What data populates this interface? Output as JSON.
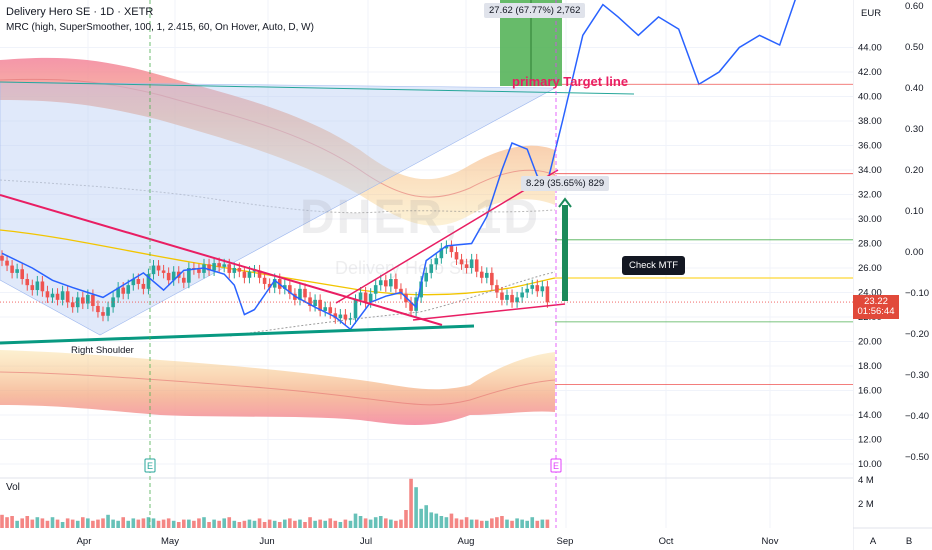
{
  "header": {
    "title": "Delivery Hero SE · 1D · XETR",
    "indicator": "MRC (high, SuperSmoother, 100, 1, 2.415, 60, On Hover, Auto, D, W)"
  },
  "watermark": {
    "symbol": "DHER, 1D",
    "name": "Delivery Hero SE"
  },
  "annotations": {
    "target_box": "27.62 (67.77%) 2,762",
    "move_box": "8.29 (35.65%) 829",
    "target_line": "primary Target line",
    "check_mtf": "Check MTF",
    "right_shoulder": "Right Shoulder",
    "earnings_marker": "E"
  },
  "price_tag": {
    "price": "23.22",
    "countdown": "01:56:44"
  },
  "volume_label": "Vol",
  "axis_labels": {
    "currency": "EUR",
    "scale_a": "A",
    "scale_b": "B"
  },
  "colors": {
    "candle_up": "#26a69a",
    "candle_down": "#ef5350",
    "trendline": "#e91e63",
    "neckline": "#089981",
    "projection": "#2962ff",
    "ma": "#f2c500",
    "target_box": "#4caf50",
    "price_tag": "#e1493a"
  },
  "chart_data": {
    "type": "candlestick",
    "x_ticks": [
      "Apr",
      "May",
      "Jun",
      "Jul",
      "Aug",
      "Sep",
      "Oct",
      "Nov"
    ],
    "price_ticks": [
      10,
      12,
      14,
      16,
      18,
      20,
      22,
      24,
      26,
      28,
      30,
      32,
      34,
      36,
      38,
      40,
      42,
      44
    ],
    "oscillator_ticks": [
      "0.60",
      "0.50",
      "0.40",
      "0.30",
      "0.20",
      "0.10",
      "0.00",
      "−0.10",
      "−0.20",
      "−0.30",
      "−0.40",
      "−0.50"
    ],
    "volume_ticks": [
      "4 M",
      "2 M"
    ],
    "last_price": 23.22,
    "levels": [
      41.0,
      33.7,
      28.3,
      21.6,
      16.5
    ],
    "closes": [
      26.6,
      26.2,
      25.6,
      25.9,
      25.1,
      24.6,
      24.2,
      24.9,
      24.1,
      23.6,
      23.9,
      23.4,
      24.1,
      23.2,
      22.8,
      23.6,
      23.1,
      23.8,
      22.9,
      22.4,
      22.1,
      22.8,
      23.6,
      24.4,
      23.9,
      24.6,
      25.1,
      24.7,
      24.3,
      25.5,
      26.2,
      25.8,
      25.6,
      25.0,
      25.7,
      25.2,
      24.8,
      26.0,
      25.9,
      25.6,
      26.3,
      25.8,
      26.4,
      26.1,
      26.3,
      25.6,
      26.0,
      25.7,
      25.2,
      25.7,
      25.8,
      25.2,
      24.7,
      24.4,
      25.1,
      24.3,
      24.6,
      23.9,
      23.4,
      24.3,
      23.6,
      22.9,
      23.4,
      22.5,
      22.8,
      22.3,
      21.9,
      22.2,
      21.8,
      21.9,
      23.4,
      24.0,
      23.2,
      23.9,
      24.6,
      25.0,
      24.5,
      25.1,
      24.3,
      23.9,
      23.2,
      22.5,
      23.6,
      24.9,
      25.6,
      26.3,
      26.8,
      27.6,
      27.8,
      27.3,
      26.7,
      26.3,
      26.0,
      26.7,
      25.7,
      25.2,
      25.6,
      24.6,
      24.0,
      23.4,
      23.8,
      23.2,
      23.6,
      24.0,
      24.3,
      24.6,
      24.1,
      24.5,
      23.2
    ],
    "volumes": [
      1.1,
      0.9,
      1.0,
      0.6,
      0.8,
      1.0,
      0.7,
      0.9,
      0.8,
      0.6,
      0.9,
      0.7,
      0.5,
      0.8,
      0.7,
      0.6,
      0.9,
      0.8,
      0.6,
      0.7,
      0.8,
      1.1,
      0.7,
      0.6,
      0.9,
      0.6,
      0.8,
      0.7,
      0.8,
      0.9,
      0.8,
      0.6,
      0.7,
      0.8,
      0.6,
      0.5,
      0.7,
      0.7,
      0.6,
      0.8,
      0.9,
      0.5,
      0.7,
      0.6,
      0.8,
      0.9,
      0.6,
      0.5,
      0.6,
      0.7,
      0.6,
      0.8,
      0.5,
      0.7,
      0.6,
      0.5,
      0.7,
      0.8,
      0.6,
      0.7,
      0.5,
      0.9,
      0.6,
      0.7,
      0.6,
      0.8,
      0.6,
      0.5,
      0.7,
      0.6,
      1.2,
      1.0,
      0.8,
      0.7,
      0.9,
      1.0,
      0.8,
      0.7,
      0.6,
      0.7,
      1.5,
      4.1,
      3.4,
      1.6,
      1.9,
      1.3,
      1.2,
      1.0,
      0.9,
      1.2,
      0.8,
      0.7,
      0.9,
      0.7,
      0.7,
      0.6,
      0.6,
      0.8,
      0.9,
      1.0,
      0.7,
      0.6,
      0.8,
      0.7,
      0.6,
      0.9,
      0.6,
      0.7,
      0.7
    ],
    "projection": [
      [
        0,
        27.2
      ],
      [
        6,
        26.0
      ],
      [
        10,
        25.0
      ],
      [
        14,
        24.4
      ],
      [
        17,
        24.0
      ],
      [
        20,
        23.6
      ],
      [
        24,
        24.6
      ],
      [
        28,
        25.6
      ],
      [
        32,
        24.2
      ],
      [
        36,
        25.8
      ],
      [
        40,
        26.0
      ],
      [
        44,
        25.5
      ],
      [
        46,
        24.6
      ],
      [
        48,
        22.2
      ],
      [
        50,
        22.6
      ],
      [
        54,
        25.0
      ],
      [
        58,
        23.7
      ],
      [
        62,
        22.8
      ],
      [
        66,
        22.0
      ],
      [
        69,
        21.0
      ],
      [
        73,
        23.2
      ],
      [
        76,
        23.7
      ],
      [
        79,
        24.0
      ],
      [
        82,
        22.8
      ],
      [
        84,
        26.6
      ],
      [
        88,
        27.8
      ],
      [
        93,
        28.0
      ],
      [
        96,
        30.2
      ],
      [
        99,
        34.0
      ],
      [
        101,
        36.2
      ],
      [
        104,
        35.7
      ],
      [
        106,
        33.5
      ],
      [
        108,
        33.0
      ],
      [
        111,
        38.0
      ],
      [
        115,
        45.0
      ],
      [
        119,
        47.5
      ],
      [
        122,
        46.5
      ],
      [
        126,
        45.0
      ],
      [
        130,
        46.5
      ],
      [
        134,
        45.5
      ],
      [
        138,
        41.0
      ],
      [
        142,
        42.0
      ],
      [
        146,
        44.0
      ],
      [
        150,
        45.0
      ],
      [
        154,
        44.2
      ],
      [
        158,
        49.0
      ]
    ]
  }
}
